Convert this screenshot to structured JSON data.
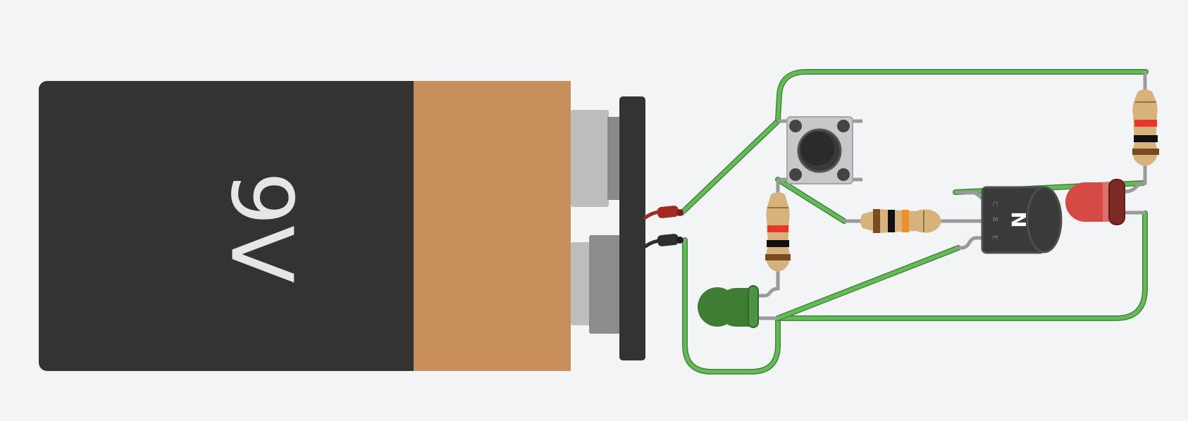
{
  "canvas": {
    "background": "#f3f4f6"
  },
  "battery": {
    "label": "9V",
    "body_color": "#333333",
    "band_color": "#c68f5b",
    "terminal_color": "#bdbdbd",
    "cap_color": "#333333",
    "label_color": "#e6e6e6"
  },
  "wires": {
    "color": "#66b85a",
    "border": "#3f8a36",
    "lead": "#9a9a9a"
  },
  "transistor": {
    "type": "NPN",
    "symbol": "N",
    "pins": [
      "C",
      "B",
      "E"
    ],
    "color": "#3a3a3a"
  },
  "resistor_colors": {
    "body": "#d8b27c",
    "brown": "#7a4a21",
    "red": "#e53a2b",
    "black": "#111111",
    "orange": "#ef8f2c"
  },
  "led_green": {
    "color": "#3f7d35"
  },
  "led_red": {
    "color": "#d64a45"
  },
  "button": {
    "color": "#c8c8c8"
  }
}
